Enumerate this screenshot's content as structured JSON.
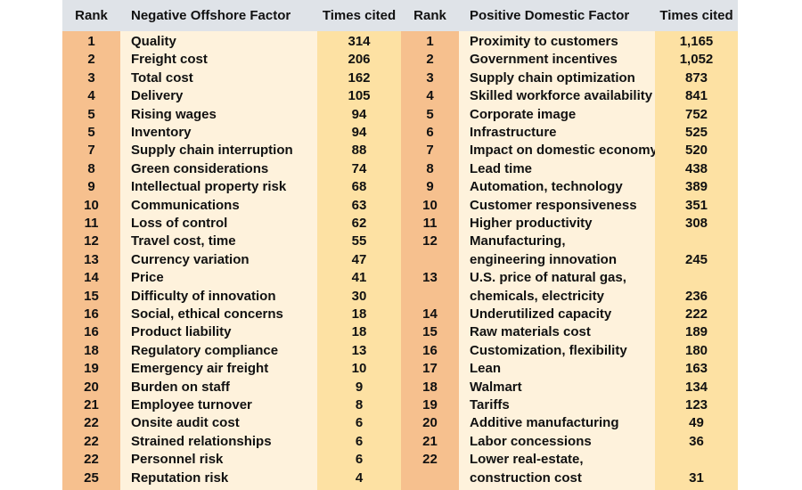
{
  "headers": {
    "rank_left": "Rank",
    "neg_factor": "Negative Offshore Factor",
    "times_left": "Times cited",
    "rank_right": "Rank",
    "pos_factor": "Positive Domestic Factor",
    "times_right": "Times cited"
  },
  "negative": [
    {
      "rank": "1",
      "factor": "Quality",
      "times": "314"
    },
    {
      "rank": "2",
      "factor": "Freight cost",
      "times": "206"
    },
    {
      "rank": "3",
      "factor": "Total cost",
      "times": "162"
    },
    {
      "rank": "4",
      "factor": "Delivery",
      "times": "105"
    },
    {
      "rank": "5",
      "factor": "Rising wages",
      "times": "94"
    },
    {
      "rank": "5",
      "factor": "Inventory",
      "times": "94"
    },
    {
      "rank": "7",
      "factor": "Supply chain interruption",
      "times": "88"
    },
    {
      "rank": "8",
      "factor": "Green considerations",
      "times": "74"
    },
    {
      "rank": "9",
      "factor": "Intellectual property risk",
      "times": "68"
    },
    {
      "rank": "10",
      "factor": "Communications",
      "times": "63"
    },
    {
      "rank": "11",
      "factor": "Loss of control",
      "times": "62"
    },
    {
      "rank": "12",
      "factor": "Travel cost, time",
      "times": "55"
    },
    {
      "rank": "13",
      "factor": "Currency variation",
      "times": "47"
    },
    {
      "rank": "14",
      "factor": "Price",
      "times": "41"
    },
    {
      "rank": "15",
      "factor": "Difficulty of innovation",
      "times": "30"
    },
    {
      "rank": "16",
      "factor": "Social, ethical concerns",
      "times": "18"
    },
    {
      "rank": "16",
      "factor": "Product liability",
      "times": "18"
    },
    {
      "rank": "18",
      "factor": "Regulatory compliance",
      "times": "13"
    },
    {
      "rank": "19",
      "factor": "Emergency air freight",
      "times": "10"
    },
    {
      "rank": "20",
      "factor": "Burden on staff",
      "times": "9"
    },
    {
      "rank": "21",
      "factor": "Employee turnover",
      "times": "8"
    },
    {
      "rank": "22",
      "factor": "Onsite audit cost",
      "times": "6"
    },
    {
      "rank": "22",
      "factor": "Strained relationships",
      "times": "6"
    },
    {
      "rank": "22",
      "factor": "Personnel risk",
      "times": "6"
    },
    {
      "rank": "25",
      "factor": "Reputation risk",
      "times": "4"
    }
  ],
  "positive": [
    {
      "rank": "1",
      "factor": "Proximity to customers",
      "times": "1,165"
    },
    {
      "rank": "2",
      "factor": "Government incentives",
      "times": "1,052"
    },
    {
      "rank": "3",
      "factor": "Supply chain optimization",
      "times": "873"
    },
    {
      "rank": "4",
      "factor": "Skilled workforce availability",
      "times": "841"
    },
    {
      "rank": "5",
      "factor": "Corporate image",
      "times": "752"
    },
    {
      "rank": "6",
      "factor": "Infrastructure",
      "times": "525"
    },
    {
      "rank": "7",
      "factor": "Impact on domestic economy",
      "times": "520"
    },
    {
      "rank": "8",
      "factor": "Lead time",
      "times": "438"
    },
    {
      "rank": "9",
      "factor": "Automation, technology",
      "times": "389"
    },
    {
      "rank": "10",
      "factor": "Customer responsiveness",
      "times": "351"
    },
    {
      "rank": "11",
      "factor": "Higher productivity",
      "times": "308"
    },
    {
      "rank": "12",
      "factor": "Manufacturing,",
      "times": ""
    },
    {
      "rank": "",
      "factor": "engineering innovation",
      "times": "245"
    },
    {
      "rank": "13",
      "factor": "U.S. price of natural gas,",
      "times": ""
    },
    {
      "rank": "",
      "factor": "chemicals, electricity",
      "times": "236"
    },
    {
      "rank": "14",
      "factor": "Underutilized capacity",
      "times": "222"
    },
    {
      "rank": "15",
      "factor": "Raw materials cost",
      "times": "189"
    },
    {
      "rank": "16",
      "factor": "Customization, flexibility",
      "times": "180"
    },
    {
      "rank": "17",
      "factor": "Lean",
      "times": "163"
    },
    {
      "rank": "18",
      "factor": "Walmart",
      "times": "134"
    },
    {
      "rank": "19",
      "factor": "Tariffs",
      "times": "123"
    },
    {
      "rank": "20",
      "factor": "Additive manufacturing",
      "times": "49"
    },
    {
      "rank": "21",
      "factor": "Labor concessions",
      "times": "36"
    },
    {
      "rank": "22",
      "factor": "Lower real-estate,",
      "times": ""
    },
    {
      "rank": "",
      "factor": "construction cost",
      "times": "31"
    }
  ],
  "colors": {
    "header_bg": "#dfe3e8",
    "rank_bg": "#f6c08e",
    "factor_bg": "#fef2dc",
    "times_bg": "#fde1a3"
  }
}
